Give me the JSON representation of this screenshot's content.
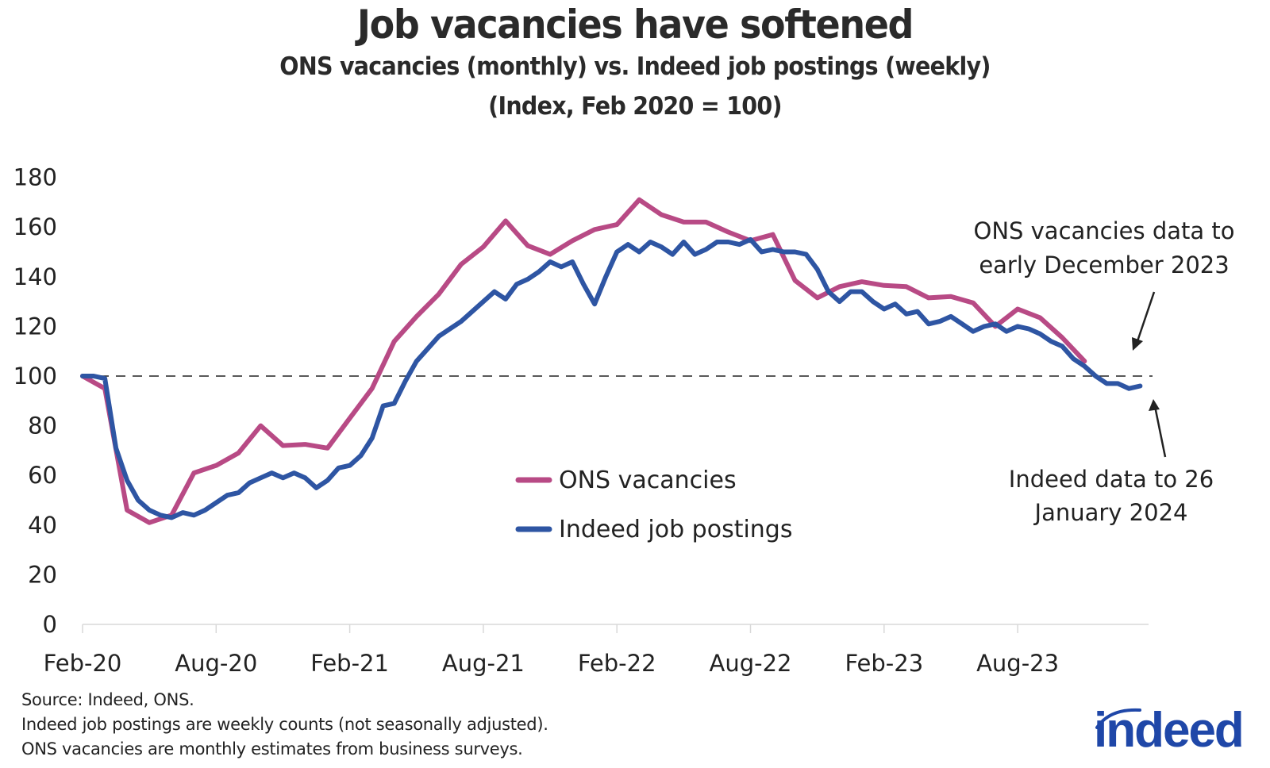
{
  "header": {
    "title": "Job vacancies have softened",
    "subtitle_line1": "ONS vacancies (monthly) vs. Indeed job postings (weekly)",
    "subtitle_line2": "(Index, Feb 2020 = 100)"
  },
  "legend": {
    "items": [
      {
        "label": "ONS vacancies",
        "color": "#b84a85"
      },
      {
        "label": "Indeed job postings",
        "color": "#2e55a3"
      }
    ]
  },
  "annotations": {
    "ons_line1": "ONS vacancies data to",
    "ons_line2": "early December 2023",
    "indeed_line1": "Indeed data to 26",
    "indeed_line2": "January 2024"
  },
  "footnotes": {
    "source": "Source: Indeed, ONS.",
    "note1": "Indeed job postings are weekly counts (not seasonally adjusted).",
    "note2": "ONS vacancies are monthly estimates from business surveys."
  },
  "logo": {
    "text": "indeed",
    "color": "#1f47a8"
  },
  "chart_data": {
    "type": "line",
    "title": "Job vacancies have softened",
    "subtitle": "ONS vacancies (monthly) vs. Indeed job postings (weekly) (Index, Feb 2020 = 100)",
    "xlabel": "",
    "ylabel": "",
    "ylim": [
      0,
      180
    ],
    "yticks": [
      0,
      20,
      40,
      60,
      80,
      100,
      120,
      140,
      160,
      180
    ],
    "xtick_labels": [
      "Feb-20",
      "Aug-20",
      "Feb-21",
      "Aug-21",
      "Feb-22",
      "Aug-22",
      "Feb-23",
      "Aug-23"
    ],
    "grid": false,
    "reference_line": {
      "y": 100,
      "style": "dashed"
    },
    "legend_position": "center",
    "series": [
      {
        "name": "ONS vacancies",
        "color": "#b84a85",
        "frequency": "monthly",
        "x": [
          "2020-02",
          "2020-03",
          "2020-04",
          "2020-05",
          "2020-06",
          "2020-07",
          "2020-08",
          "2020-09",
          "2020-10",
          "2020-11",
          "2020-12",
          "2021-01",
          "2021-02",
          "2021-03",
          "2021-04",
          "2021-05",
          "2021-06",
          "2021-07",
          "2021-08",
          "2021-09",
          "2021-10",
          "2021-11",
          "2021-12",
          "2022-01",
          "2022-02",
          "2022-03",
          "2022-04",
          "2022-05",
          "2022-06",
          "2022-07",
          "2022-08",
          "2022-09",
          "2022-10",
          "2022-11",
          "2022-12",
          "2023-01",
          "2023-02",
          "2023-03",
          "2023-04",
          "2023-05",
          "2023-06",
          "2023-07",
          "2023-08",
          "2023-09",
          "2023-10",
          "2023-11"
        ],
        "values": [
          100,
          95,
          46,
          41,
          44,
          61,
          64,
          69,
          80,
          72,
          72.5,
          71,
          83,
          95,
          114,
          124,
          133,
          145,
          152,
          162.5,
          152.5,
          149,
          154.5,
          159,
          161,
          171,
          165,
          162,
          162,
          158,
          154.5,
          157,
          138.5,
          131.5,
          136,
          138,
          136.5,
          136,
          131.5,
          132,
          129.5,
          120,
          127,
          123.5,
          115.5,
          106
        ]
      },
      {
        "name": "Indeed job postings",
        "color": "#2e55a3",
        "frequency": "weekly (sampled ~semi-monthly)",
        "x_months_since_feb20": [
          0,
          0.5,
          1,
          1.5,
          2,
          2.5,
          3,
          3.5,
          4,
          4.5,
          5,
          5.5,
          6,
          6.5,
          7,
          7.5,
          8,
          8.5,
          9,
          9.5,
          10,
          10.5,
          11,
          11.5,
          12,
          12.5,
          13,
          13.5,
          14,
          14.5,
          15,
          15.5,
          16,
          16.5,
          17,
          17.5,
          18,
          18.5,
          19,
          19.5,
          20,
          20.5,
          21,
          21.5,
          22,
          22.5,
          23,
          23.5,
          24,
          24.5,
          25,
          25.5,
          26,
          26.5,
          27,
          27.5,
          28,
          28.5,
          29,
          29.5,
          30,
          30.5,
          31,
          31.5,
          32,
          32.5,
          33,
          33.5,
          34,
          34.5,
          35,
          35.5,
          36,
          36.5,
          37,
          37.5,
          38,
          38.5,
          39,
          39.5,
          40,
          40.5,
          41,
          41.5,
          42,
          42.5,
          43,
          43.5,
          44,
          44.5,
          45,
          45.5,
          46,
          46.5,
          47,
          47.5
        ],
        "values": [
          100,
          100,
          99,
          71,
          58,
          50,
          46,
          44,
          43,
          45,
          44,
          46,
          49,
          52,
          53,
          57,
          59,
          61,
          59,
          61,
          59,
          55,
          58,
          63,
          64,
          68,
          75,
          88,
          89,
          98,
          106,
          111,
          116,
          119,
          122,
          126,
          130,
          134,
          131,
          137,
          139,
          142,
          146,
          144,
          146,
          137,
          129,
          140,
          150,
          153,
          150,
          154,
          152,
          149,
          154,
          149,
          151,
          154,
          154,
          153,
          155,
          150,
          151,
          150,
          150,
          149,
          143,
          134,
          130,
          134,
          134,
          130,
          127,
          129,
          125,
          126,
          121,
          122,
          124,
          121,
          118,
          120,
          121,
          118,
          120,
          119,
          117,
          114,
          112,
          107,
          104,
          100,
          97,
          97,
          95,
          96
        ]
      }
    ]
  }
}
